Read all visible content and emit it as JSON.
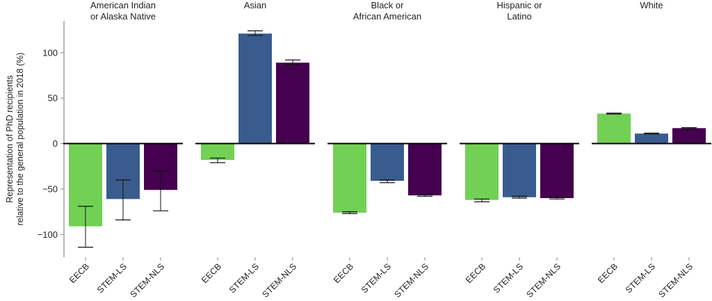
{
  "chart_data": {
    "type": "bar",
    "ylabel": "Representation of PhD recipients relative to the general population in 2018 (%)",
    "ylabel_lines": [
      "Representation of PhD recipients",
      "relative to the general population in 2018 (%)"
    ],
    "ylim": [
      -125,
      135
    ],
    "yticks": [
      -100,
      -50,
      0,
      50,
      100
    ],
    "ytick_labels": [
      "−100",
      "−50",
      "0",
      "50",
      "100"
    ],
    "grid": false,
    "categories": [
      "EECB",
      "STEM-LS",
      "STEM-NLS"
    ],
    "colors": {
      "EECB": "#72d054",
      "STEM-LS": "#3a5b8e",
      "STEM-NLS": "#45004f"
    },
    "panels": [
      {
        "title": [
          "American Indian",
          "or Alaska Native"
        ],
        "values": [
          -91,
          -61,
          -51
        ],
        "err_low": [
          -114,
          -84,
          -74
        ],
        "err_high": [
          -69,
          -40,
          -30
        ]
      },
      {
        "title": [
          "Asian"
        ],
        "values": [
          -18,
          121,
          89
        ],
        "err_low": [
          -21,
          119,
          87
        ],
        "err_high": [
          -16,
          124,
          92
        ]
      },
      {
        "title": [
          "Black or",
          "African American"
        ],
        "values": [
          -76,
          -41,
          -57
        ],
        "err_low": [
          -77,
          -43,
          -58
        ],
        "err_high": [
          -75,
          -40,
          -56
        ]
      },
      {
        "title": [
          "Hispanic or",
          "Latino"
        ],
        "values": [
          -62,
          -59,
          -60
        ],
        "err_low": [
          -64,
          -60,
          -61
        ],
        "err_high": [
          -61,
          -58,
          -59
        ]
      },
      {
        "title": [
          "White"
        ],
        "values": [
          33,
          11,
          17
        ],
        "err_low": [
          32.5,
          10.5,
          16
        ],
        "err_high": [
          33.5,
          11.5,
          17.5
        ]
      }
    ]
  }
}
